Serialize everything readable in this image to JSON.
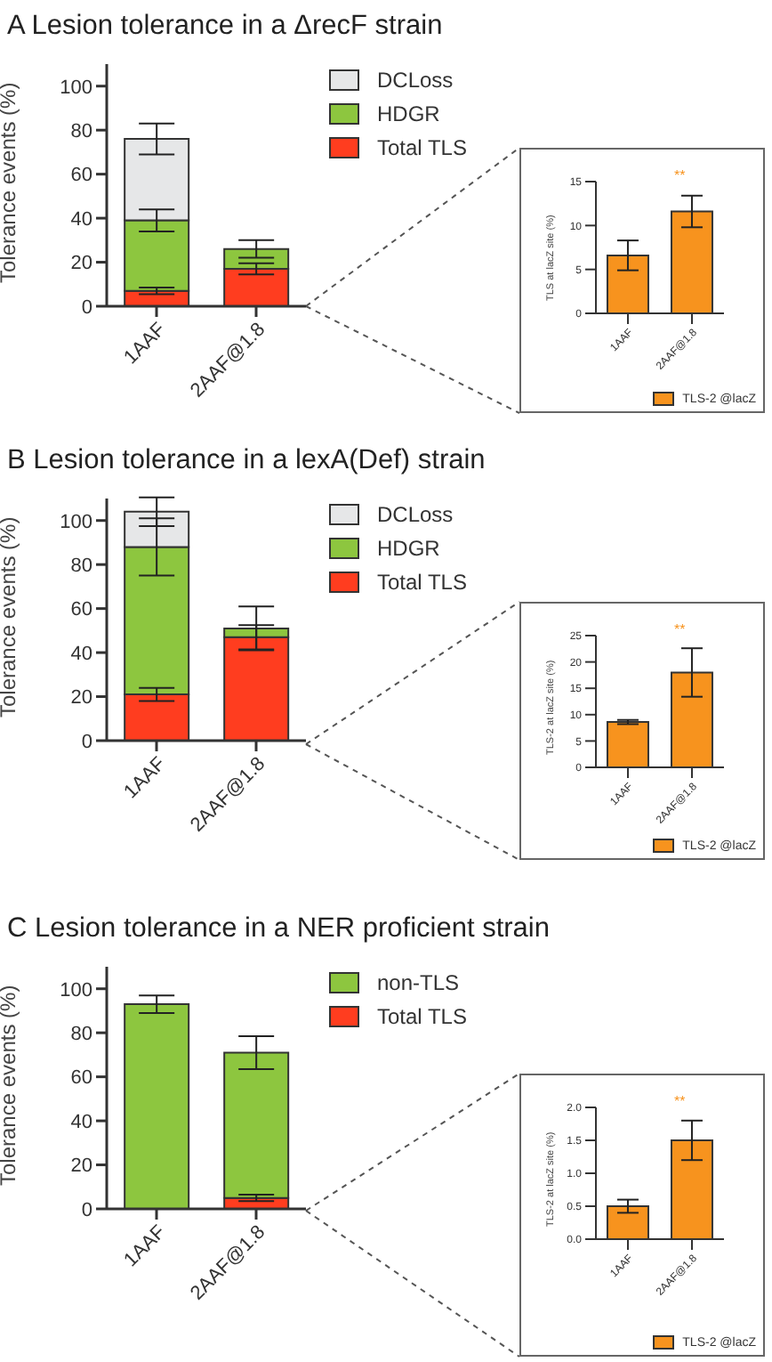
{
  "chart_data": [
    {
      "type": "bar",
      "title": "A  Lesion tolerance in a ΔrecF strain",
      "categories": [
        "1AAF",
        "2AAF@1.8"
      ],
      "stacked": true,
      "ylabel": "Tolerance events (%)",
      "ylim": [
        0,
        110
      ],
      "yticks": [
        0,
        20,
        40,
        60,
        80,
        100
      ],
      "legend": "top right",
      "series": [
        {
          "name": "Total TLS",
          "color": "#ff3d1f",
          "values": [
            7,
            17
          ],
          "errors": [
            1.5,
            2.5
          ]
        },
        {
          "name": "HDGR",
          "color": "#8dc63f",
          "values": [
            32,
            9
          ],
          "errors": [
            5,
            4
          ]
        },
        {
          "name": "DCLoss",
          "color": "#e6e7e8",
          "values": [
            37,
            null
          ],
          "errors": [
            7,
            null
          ]
        }
      ]
    },
    {
      "type": "bar",
      "categories": [
        "1AAF",
        "2AAF@1.8"
      ],
      "ylabel": "TLS at lacZ site (%)",
      "ylim": [
        0,
        15
      ],
      "yticks": [
        0,
        5,
        10,
        15
      ],
      "legend": "bottom right",
      "annotations": [
        "**"
      ],
      "series": [
        {
          "name": "TLS-2 @lacZ",
          "color": "#f7931e",
          "values": [
            6.6,
            11.6
          ],
          "errors": [
            1.7,
            1.8
          ]
        }
      ]
    },
    {
      "type": "bar",
      "title": "B  Lesion tolerance in a lexA(Def) strain",
      "categories": [
        "1AAF",
        "2AAF@1.8"
      ],
      "stacked": true,
      "ylabel": "Tolerance events (%)",
      "ylim": [
        0,
        110
      ],
      "yticks": [
        0,
        20,
        40,
        60,
        80,
        100
      ],
      "legend": "top right",
      "series": [
        {
          "name": "Total TLS",
          "color": "#ff3d1f",
          "values": [
            21,
            47
          ],
          "errors": [
            3,
            5.5
          ]
        },
        {
          "name": "HDGR",
          "color": "#8dc63f",
          "values": [
            67,
            4
          ],
          "errors": [
            13,
            10
          ]
        },
        {
          "name": "DCLoss",
          "color": "#e6e7e8",
          "values": [
            16,
            null
          ],
          "errors": [
            6.5,
            null
          ]
        }
      ]
    },
    {
      "type": "bar",
      "categories": [
        "1AAF",
        "2AAF@1.8"
      ],
      "ylabel": "TLS-2 at lacZ site (%)",
      "ylim": [
        0,
        25
      ],
      "yticks": [
        0,
        5,
        10,
        15,
        20,
        25
      ],
      "legend": "bottom right",
      "annotations": [
        "**"
      ],
      "series": [
        {
          "name": "TLS-2 @lacZ",
          "color": "#f7931e",
          "values": [
            8.6,
            18
          ],
          "errors": [
            0.4,
            4.6
          ]
        }
      ]
    },
    {
      "type": "bar",
      "title": "C  Lesion tolerance in a NER proficient strain",
      "categories": [
        "1AAF",
        "2AAF@1.8"
      ],
      "stacked": true,
      "ylabel": "Tolerance events (%)",
      "ylim": [
        0,
        110
      ],
      "yticks": [
        0,
        20,
        40,
        60,
        80,
        100
      ],
      "legend": "top right",
      "series": [
        {
          "name": "Total TLS",
          "color": "#ff3d1f",
          "values": [
            null,
            5
          ],
          "errors": [
            null,
            1.5
          ]
        },
        {
          "name": "non-TLS",
          "color": "#8dc63f",
          "values": [
            93,
            66
          ],
          "errors": [
            4,
            7.5
          ]
        }
      ]
    },
    {
      "type": "bar",
      "categories": [
        "1AAF",
        "2AAF@1.8"
      ],
      "ylabel": "TLS-2 at lacZ site (%)",
      "ylim": [
        0,
        2
      ],
      "yticks": [
        {
          "value": 0,
          "label": "0.0"
        },
        {
          "value": 0.5,
          "label": "0.5"
        },
        {
          "value": 1,
          "label": "1.0"
        },
        {
          "value": 1.5,
          "label": "1.5"
        },
        {
          "value": 2,
          "label": "2.0"
        }
      ],
      "legend": "bottom right",
      "annotations": [
        "**"
      ],
      "series": [
        {
          "name": "TLS-2 @lacZ",
          "color": "#f7931e",
          "values": [
            0.5,
            1.5
          ],
          "errors": [
            0.1,
            0.3
          ]
        }
      ]
    }
  ]
}
